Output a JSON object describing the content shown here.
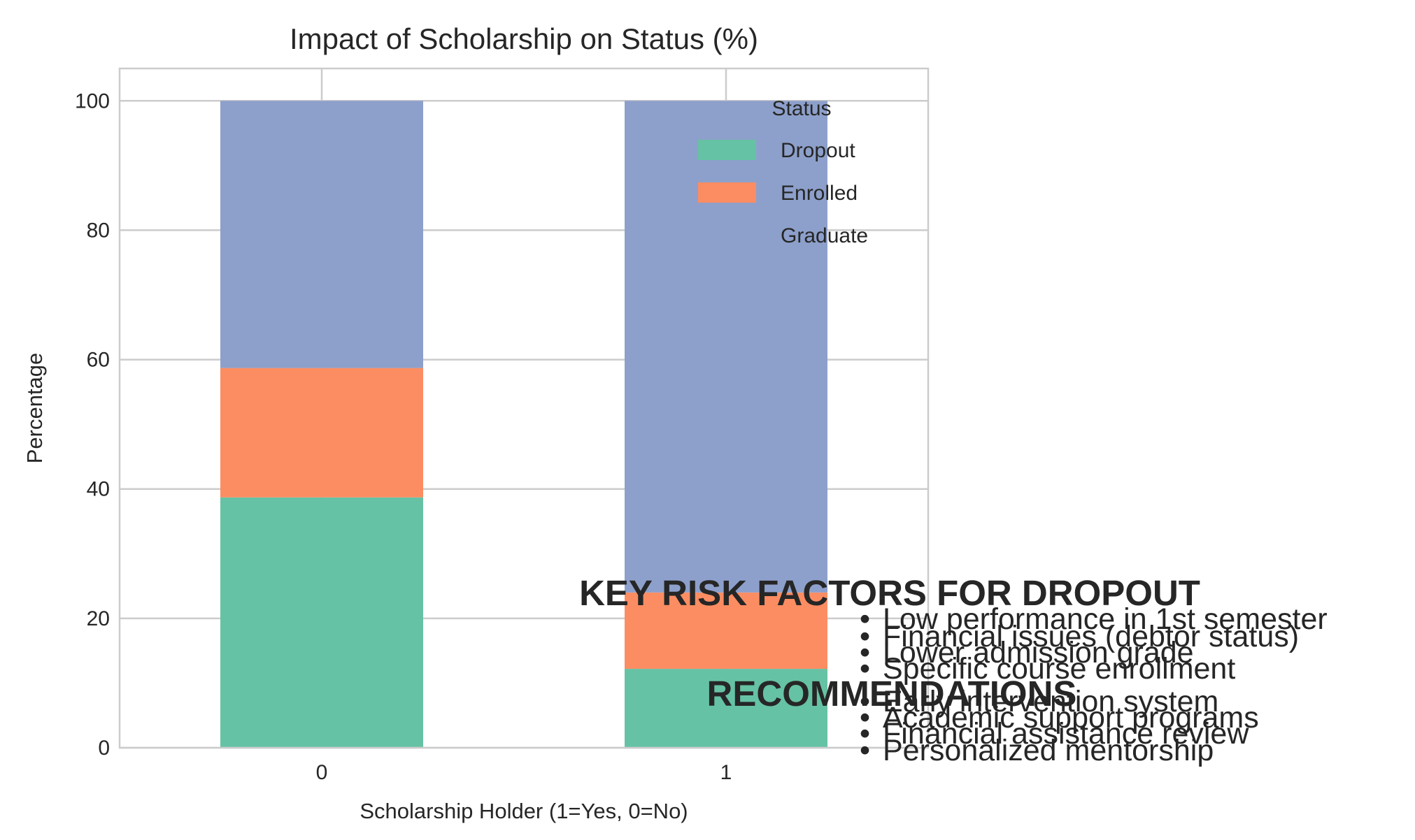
{
  "chart_data": {
    "type": "bar",
    "stacked": true,
    "title": "Impact of Scholarship on Status (%)",
    "xlabel": "Scholarship Holder (1=Yes, 0=No)",
    "ylabel": "Percentage",
    "categories": [
      "0",
      "1"
    ],
    "ylim": [
      0,
      105
    ],
    "yticks": [
      0,
      20,
      40,
      60,
      80,
      100
    ],
    "grid": true,
    "legend": {
      "title": "Status",
      "position": "top-right"
    },
    "series": [
      {
        "name": "Dropout",
        "color": "#66c2a5",
        "values": [
          38.7,
          12.2
        ]
      },
      {
        "name": "Enrolled",
        "color": "#fc8d62",
        "values": [
          20.0,
          11.8
        ]
      },
      {
        "name": "Graduate",
        "color": "#8da0cb",
        "values": [
          41.3,
          76.0
        ]
      }
    ]
  },
  "annotations": {
    "risk_heading": "KEY RISK FACTORS FOR DROPOUT",
    "risk_items": [
      "Low performance in 1st semester",
      "Financial issues (debtor status)",
      "Lower admission grade",
      "Specific course enrollment"
    ],
    "rec_heading": "RECOMMENDATIONS",
    "rec_items": [
      "Early intervention system",
      "Academic support programs",
      "Financial assistance review",
      "Personalized mentorship"
    ],
    "bullet": "•"
  }
}
